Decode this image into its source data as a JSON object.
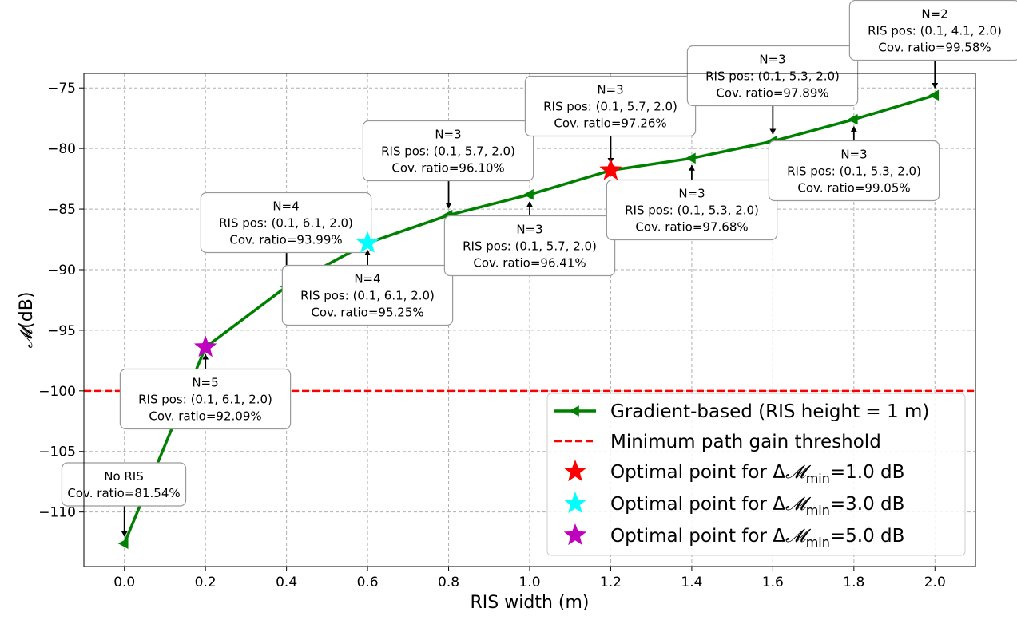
{
  "chart_data": {
    "type": "line",
    "title": "",
    "xlabel": "RIS width (m)",
    "ylabel": "(dB)",
    "ylabel_symbol": "𝓜",
    "xlim": [
      -0.1,
      2.1
    ],
    "ylim": [
      -114.5,
      -73.8
    ],
    "x_ticks": [
      0.0,
      0.2,
      0.4,
      0.6,
      0.8,
      1.0,
      1.2,
      1.4,
      1.6,
      1.8,
      2.0
    ],
    "x_tick_labels": [
      "0.0",
      "0.2",
      "0.4",
      "0.6",
      "0.8",
      "1.0",
      "1.2",
      "1.4",
      "1.6",
      "1.8",
      "2.0"
    ],
    "y_ticks": [
      -110,
      -105,
      -100,
      -95,
      -90,
      -85,
      -80,
      -75
    ],
    "y_tick_labels": [
      "−110",
      "−105",
      "−100",
      "−95",
      "−90",
      "−85",
      "−80",
      "−75"
    ],
    "grid": true,
    "legend_position": "bottom-right",
    "series": [
      {
        "name": "Gradient-based (RIS height = 1 m)",
        "color": "#008000",
        "marker": "triangle-left",
        "x": [
          0.0,
          0.2,
          0.4,
          0.6,
          0.8,
          1.0,
          1.2,
          1.4,
          1.6,
          1.8,
          2.0
        ],
        "y": [
          -112.6,
          -96.4,
          -91.4,
          -87.8,
          -85.5,
          -83.8,
          -81.8,
          -80.8,
          -79.4,
          -77.6,
          -75.6
        ]
      }
    ],
    "threshold": {
      "name": "Minimum path gain threshold",
      "value": -100,
      "color": "#ff0000"
    },
    "optimal_points": [
      {
        "prefix": "Optimal point for Δ",
        "symbol": "𝓜",
        "sub": "min",
        "suffix": "=1.0 dB",
        "x": 1.2,
        "y": -81.8,
        "color": "#ff0000"
      },
      {
        "prefix": "Optimal point for Δ",
        "symbol": "𝓜",
        "sub": "min",
        "suffix": "=3.0 dB",
        "x": 0.6,
        "y": -87.8,
        "color": "#00ffff"
      },
      {
        "prefix": "Optimal point for Δ",
        "symbol": "𝓜",
        "sub": "min",
        "suffix": "=5.0 dB",
        "x": 0.2,
        "y": -96.4,
        "color": "#bf00bf"
      }
    ],
    "annotations": [
      {
        "x": 0.0,
        "y": -112.6,
        "lines": [
          "No RIS",
          "Cov. ratio=81.54%"
        ]
      },
      {
        "x": 0.2,
        "y": -96.4,
        "lines": [
          "N=5",
          "RIS pos: (0.1, 6.1, 2.0)",
          "Cov. ratio=92.09%"
        ]
      },
      {
        "x": 0.4,
        "y": -91.4,
        "lines": [
          "N=4",
          "RIS pos: (0.1, 6.1, 2.0)",
          "Cov. ratio=93.99%"
        ]
      },
      {
        "x": 0.6,
        "y": -87.8,
        "lines": [
          "N=4",
          "RIS pos: (0.1, 6.1, 2.0)",
          "Cov. ratio=95.25%"
        ]
      },
      {
        "x": 0.8,
        "y": -85.5,
        "lines": [
          "N=3",
          "RIS pos: (0.1, 5.7, 2.0)",
          "Cov. ratio=96.10%"
        ]
      },
      {
        "x": 1.0,
        "y": -83.8,
        "lines": [
          "N=3",
          "RIS pos: (0.1, 5.7, 2.0)",
          "Cov. ratio=96.41%"
        ]
      },
      {
        "x": 1.2,
        "y": -81.8,
        "lines": [
          "N=3",
          "RIS pos: (0.1, 5.7, 2.0)",
          "Cov. ratio=97.26%"
        ]
      },
      {
        "x": 1.4,
        "y": -80.8,
        "lines": [
          "N=3",
          "RIS pos: (0.1, 5.3, 2.0)",
          "Cov. ratio=97.68%"
        ]
      },
      {
        "x": 1.6,
        "y": -79.4,
        "lines": [
          "N=3",
          "RIS pos: (0.1, 5.3, 2.0)",
          "Cov. ratio=97.89%"
        ]
      },
      {
        "x": 1.8,
        "y": -77.6,
        "lines": [
          "N=3",
          "RIS pos: (0.1, 5.3, 2.0)",
          "Cov. ratio=99.05%"
        ]
      },
      {
        "x": 2.0,
        "y": -75.6,
        "lines": [
          "N=2",
          "RIS pos: (0.1, 4.1, 2.0)",
          "Cov. ratio=99.58%"
        ]
      }
    ]
  }
}
